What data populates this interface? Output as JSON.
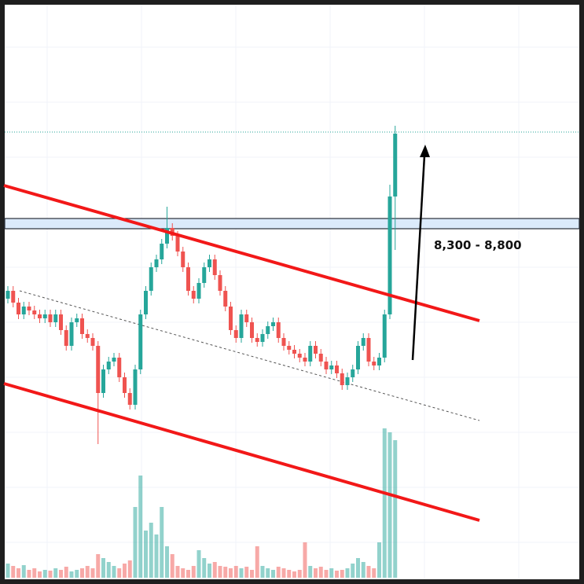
{
  "chart_data": {
    "type": "candlestick",
    "annotation": "8,300 - 8,800",
    "up_color": "#26a69a",
    "down_color": "#ef5350",
    "ylim": [
      0,
      743
    ],
    "y2lim": [
      0,
      735
    ],
    "open": [
      363,
      373,
      358,
      343,
      353,
      348,
      343,
      338,
      343,
      333,
      343,
      323,
      303,
      333,
      338,
      318,
      313,
      303,
      243,
      273,
      283,
      288,
      263,
      243,
      228,
      273,
      343,
      373,
      403,
      413,
      433,
      453,
      443,
      423,
      403,
      373,
      363,
      383,
      403,
      413,
      393,
      373,
      353,
      323,
      313,
      343,
      333,
      313,
      308,
      318,
      328,
      333,
      313,
      303,
      298,
      293,
      288,
      283,
      303,
      293,
      283,
      273,
      278,
      268,
      253,
      263,
      273,
      303,
      313,
      283,
      278,
      288,
      343,
      493
    ],
    "high": [
      379,
      379,
      364,
      359,
      359,
      354,
      349,
      349,
      349,
      349,
      349,
      329,
      339,
      344,
      344,
      324,
      319,
      309,
      279,
      289,
      294,
      294,
      269,
      249,
      279,
      349,
      379,
      409,
      419,
      439,
      480,
      459,
      449,
      429,
      409,
      379,
      389,
      409,
      419,
      419,
      399,
      379,
      359,
      329,
      349,
      349,
      339,
      319,
      324,
      334,
      339,
      339,
      319,
      309,
      304,
      299,
      294,
      309,
      309,
      299,
      289,
      284,
      284,
      274,
      269,
      279,
      309,
      319,
      319,
      289,
      294,
      349,
      508,
      583
    ],
    "low": [
      357,
      352,
      337,
      337,
      342,
      337,
      332,
      332,
      327,
      327,
      317,
      297,
      297,
      327,
      312,
      307,
      297,
      178,
      237,
      267,
      277,
      257,
      237,
      222,
      222,
      267,
      337,
      367,
      397,
      407,
      427,
      437,
      417,
      397,
      367,
      357,
      357,
      377,
      397,
      387,
      367,
      347,
      317,
      307,
      307,
      327,
      307,
      302,
      302,
      312,
      322,
      307,
      297,
      292,
      287,
      282,
      277,
      277,
      287,
      277,
      267,
      267,
      262,
      247,
      247,
      257,
      267,
      297,
      277,
      272,
      272,
      282,
      337,
      425
    ],
    "close": [
      373,
      358,
      343,
      353,
      348,
      343,
      338,
      343,
      333,
      343,
      323,
      303,
      333,
      338,
      318,
      313,
      303,
      243,
      273,
      283,
      288,
      263,
      243,
      228,
      273,
      343,
      373,
      403,
      413,
      433,
      453,
      443,
      423,
      403,
      373,
      363,
      383,
      403,
      413,
      393,
      373,
      353,
      323,
      313,
      343,
      333,
      313,
      308,
      318,
      328,
      333,
      313,
      303,
      298,
      293,
      288,
      283,
      303,
      293,
      283,
      273,
      278,
      268,
      253,
      263,
      273,
      303,
      313,
      283,
      278,
      288,
      343,
      493,
      573
    ],
    "volume": [
      18,
      15,
      12,
      16,
      10,
      12,
      8,
      10,
      9,
      12,
      10,
      14,
      8,
      10,
      12,
      15,
      12,
      30,
      25,
      20,
      15,
      12,
      18,
      22,
      90,
      130,
      60,
      70,
      55,
      90,
      40,
      30,
      15,
      12,
      10,
      15,
      35,
      25,
      18,
      20,
      15,
      14,
      12,
      15,
      12,
      14,
      10,
      40,
      15,
      12,
      10,
      14,
      12,
      10,
      8,
      10,
      45,
      15,
      12,
      14,
      10,
      12,
      9,
      10,
      12,
      18,
      25,
      20,
      15,
      12,
      45,
      190,
      185,
      175
    ]
  }
}
